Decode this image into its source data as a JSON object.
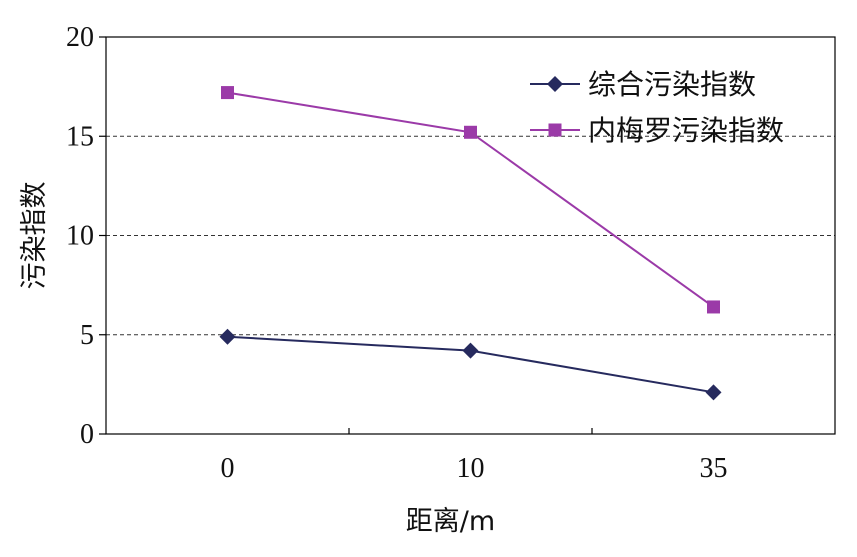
{
  "chart_data": {
    "type": "line",
    "categories": [
      "0",
      "10",
      "35"
    ],
    "xlabel": "距离/m",
    "ylabel": "污染指数",
    "ylim": [
      0,
      20
    ],
    "yticks": [
      "0",
      "5",
      "10",
      "15",
      "20"
    ],
    "grid": "horizontal dashed at 5, 10, 15",
    "legend_position": "top-right",
    "series": [
      {
        "name": "综合污染指数",
        "values": [
          4.9,
          4.2,
          2.1
        ],
        "color": "#262a5e",
        "marker": "diamond"
      },
      {
        "name": "内梅罗污染指数",
        "values": [
          17.2,
          15.2,
          6.4
        ],
        "color": "#9b3aa8",
        "marker": "square"
      }
    ]
  }
}
